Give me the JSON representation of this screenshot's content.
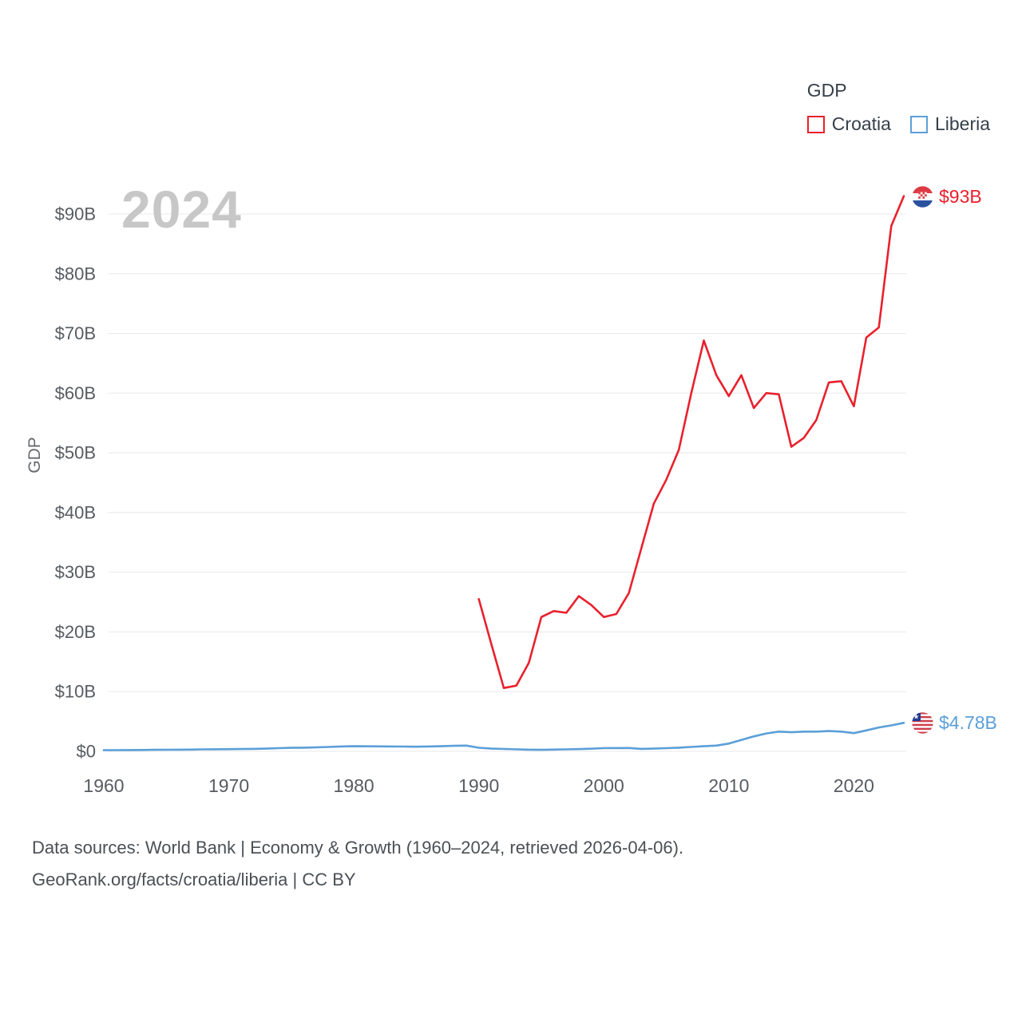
{
  "watermark_year": "2024",
  "legend": {
    "title": "GDP",
    "items": [
      {
        "label": "Croatia",
        "color": "#e8212d"
      },
      {
        "label": "Liberia",
        "color": "#5b9fd8"
      }
    ]
  },
  "end_labels": {
    "croatia": "$93B",
    "liberia": "$4.78B"
  },
  "footer": {
    "line1": "Data sources: World Bank | Economy & Growth (1960–2024, retrieved 2026-04-06).",
    "line2": "GeoRank.org/facts/croatia/liberia | CC BY"
  },
  "chart_data": {
    "type": "line",
    "title": "",
    "ylabel": "GDP",
    "xlabel": "",
    "grid": true,
    "legend_position": "top-right",
    "xlim": [
      1960,
      2024
    ],
    "ylim": [
      0,
      90
    ],
    "x_ticks": [
      1960,
      1970,
      1980,
      1990,
      2000,
      2010,
      2020
    ],
    "y_ticks": [
      {
        "value": 0,
        "label": "$0"
      },
      {
        "value": 10,
        "label": "$10B"
      },
      {
        "value": 20,
        "label": "$20B"
      },
      {
        "value": 30,
        "label": "$30B"
      },
      {
        "value": 40,
        "label": "$40B"
      },
      {
        "value": 50,
        "label": "$50B"
      },
      {
        "value": 60,
        "label": "$60B"
      },
      {
        "value": 70,
        "label": "$70B"
      },
      {
        "value": 80,
        "label": "$80B"
      },
      {
        "value": 90,
        "label": "$90B"
      }
    ],
    "series": [
      {
        "name": "Croatia",
        "color": "#e8212d",
        "start_year": 1990,
        "end_label": "$93B",
        "values": [
          25.5,
          18.0,
          10.6,
          11.0,
          14.8,
          22.5,
          23.5,
          23.2,
          26.0,
          24.5,
          22.5,
          23.0,
          26.5,
          34.0,
          41.5,
          45.5,
          50.5,
          60.0,
          68.8,
          63.0,
          59.5,
          63.0,
          57.5,
          60.0,
          59.8,
          51.0,
          52.5,
          55.5,
          61.8,
          62.0,
          57.8,
          69.3,
          71.0,
          88.0,
          93.0
        ]
      },
      {
        "name": "Liberia",
        "color": "#5b9fd8",
        "start_year": 1960,
        "end_label": "$4.78B",
        "values": [
          0.19,
          0.2,
          0.21,
          0.23,
          0.25,
          0.27,
          0.28,
          0.3,
          0.33,
          0.35,
          0.36,
          0.39,
          0.41,
          0.46,
          0.54,
          0.59,
          0.62,
          0.67,
          0.74,
          0.81,
          0.85,
          0.84,
          0.83,
          0.82,
          0.8,
          0.78,
          0.81,
          0.85,
          0.92,
          0.96,
          0.6,
          0.45,
          0.4,
          0.33,
          0.28,
          0.25,
          0.29,
          0.34,
          0.38,
          0.44,
          0.53,
          0.55,
          0.56,
          0.41,
          0.46,
          0.54,
          0.61,
          0.74,
          0.85,
          0.96,
          1.3,
          1.9,
          2.5,
          3.0,
          3.3,
          3.2,
          3.3,
          3.3,
          3.4,
          3.3,
          3.05,
          3.5,
          4.0,
          4.35,
          4.78
        ]
      }
    ]
  }
}
